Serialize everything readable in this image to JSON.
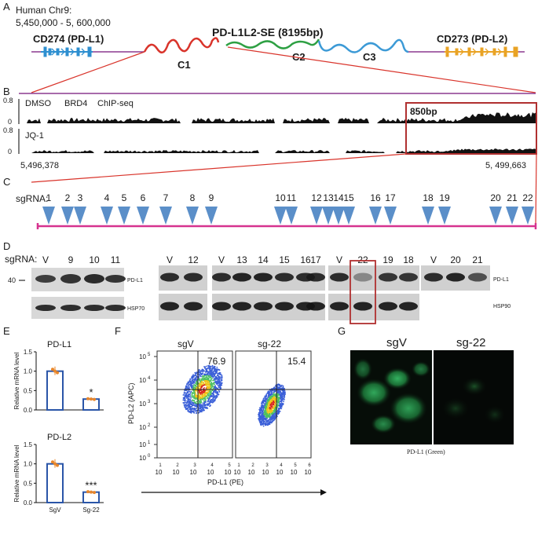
{
  "colors": {
    "cd274": "#2e8fd0",
    "cd273": "#e9a325",
    "se": "#d9342b",
    "c1": "#d9342b",
    "c2": "#2ea043",
    "c3": "#3c9ad6",
    "baseline": "#8b3a8f",
    "sgrna_axis": "#d6338f",
    "sgrna_marker": "#5b8fc9",
    "box": "#b03030",
    "bar_edge": "#2a55a8",
    "dot": "#e8862a"
  },
  "panelA": {
    "letter": "A",
    "chrom": "Human Chr9:",
    "range": "5,450,000 - 5, 600,000",
    "cd274": "CD274 (PD-L1)",
    "cd273": "CD273 (PD-L2)",
    "se": "PD-L1L2-SE (8195bp)",
    "c1": "C1",
    "c2": "C2",
    "c3": "C3"
  },
  "panelB": {
    "letter": "B",
    "track1_max": "0.8",
    "track1_min": "0",
    "track1_label1": "DMSO",
    "track1_label2": "BRD4",
    "track1_label3": "ChIP-seq",
    "track2_max": "0.8",
    "track2_min": "0",
    "track2_label": "JQ-1",
    "coord_left": "5,496,378",
    "coord_right": "5, 499,663",
    "box_label": "850bp"
  },
  "panelC": {
    "letter": "C",
    "label": "sgRNA:",
    "guides": [
      "1",
      "2",
      "3",
      "4",
      "5",
      "6",
      "7",
      "8",
      "9",
      "10",
      "11",
      "12",
      "13",
      "14",
      "15",
      "16",
      "17",
      "18",
      "19",
      "20",
      "21",
      "22"
    ]
  },
  "panelD": {
    "letter": "D",
    "label": "sgRNA:",
    "marker": "40",
    "lanes_left": [
      "V",
      "9",
      "10",
      "11"
    ],
    "lanes_right": [
      "V",
      "12",
      "V",
      "13",
      "14",
      "15",
      "16",
      "17",
      "V",
      "22",
      "19",
      "18",
      "V",
      "20",
      "21"
    ],
    "pdl1_left": "PD-L1",
    "hsp70": "HSP70",
    "pdl1_right": "PD-L1",
    "hsp90": "HSP90"
  },
  "panelE": {
    "letter": "E",
    "ylabel": "Relative mRNA level",
    "chart_data": [
      {
        "type": "bar",
        "title": "PD-L1",
        "categories": [
          "SgV",
          "Sg-22"
        ],
        "values": [
          1.0,
          0.28
        ],
        "ylim": [
          0,
          1.5
        ],
        "yticks": [
          "0.0",
          "0.5",
          "1.0",
          "1.5"
        ],
        "ylabel": "Relative mRNA level",
        "significance": [
          "",
          "*"
        ]
      },
      {
        "type": "bar",
        "title": "PD-L2",
        "categories": [
          "SgV",
          "Sg-22"
        ],
        "values": [
          1.0,
          0.27
        ],
        "ylim": [
          0,
          1.5
        ],
        "yticks": [
          "0.0",
          "0.5",
          "1.0",
          "1.5"
        ],
        "ylabel": "Relative mRNA level",
        "significance": [
          "",
          "***"
        ]
      }
    ]
  },
  "panelF": {
    "letter": "F",
    "left_title": "sgV",
    "right_title": "sg-22",
    "left_pct": "76.9",
    "right_pct": "15.4",
    "ylabel": "PD-L2 (APC)",
    "xlabel": "PD-L1 (PE)",
    "ytick_bases": [
      "10",
      "10",
      "10",
      "10",
      "10",
      "10"
    ],
    "ytick_exps": [
      "5",
      "4",
      "3",
      "2",
      "1",
      "0"
    ],
    "xtick_left": [
      "1",
      "2",
      "3",
      "4",
      "5"
    ],
    "xtick_right": [
      "1",
      "2",
      "3",
      "4",
      "5",
      "6"
    ],
    "xtick_base": "10"
  },
  "panelG": {
    "letter": "G",
    "left_title": "sgV",
    "right_title": "sg-22",
    "caption": "PD-L1 (Green)"
  }
}
